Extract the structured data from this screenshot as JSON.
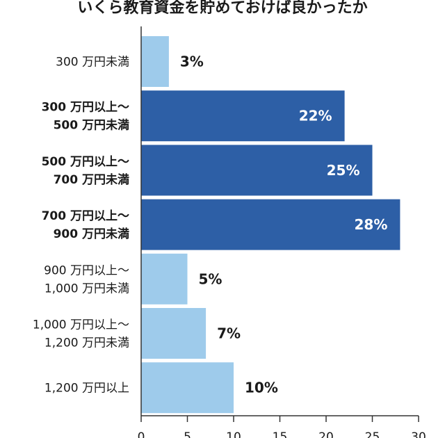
{
  "chart_data": {
    "type": "bar",
    "orientation": "horizontal",
    "title": "いくら教育資金を貯めておけば良かったか",
    "categories": [
      [
        "300 万円未満"
      ],
      [
        "300 万円以上～",
        "500 万円未満"
      ],
      [
        "500 万円以上～",
        "700 万円未満"
      ],
      [
        "700 万円以上～",
        "900 万円未満"
      ],
      [
        "900 万円以上～",
        "1,000 万円未満"
      ],
      [
        "1,000 万円以上～",
        "1,200 万円未満"
      ],
      [
        "1,200 万円以上"
      ]
    ],
    "values": [
      3,
      22,
      25,
      28,
      5,
      7,
      10
    ],
    "value_labels": [
      "3%",
      "22%",
      "25%",
      "28%",
      "5%",
      "7%",
      "10%"
    ],
    "highlighted": [
      false,
      true,
      true,
      true,
      false,
      false,
      false
    ],
    "xlim": [
      0,
      30
    ],
    "xticks": [
      0,
      5,
      10,
      15,
      20,
      25,
      30
    ],
    "grid": false,
    "colors": {
      "highlight": "#2d5fa6",
      "normal": "#9ecbeb",
      "axis": "#333333"
    }
  }
}
